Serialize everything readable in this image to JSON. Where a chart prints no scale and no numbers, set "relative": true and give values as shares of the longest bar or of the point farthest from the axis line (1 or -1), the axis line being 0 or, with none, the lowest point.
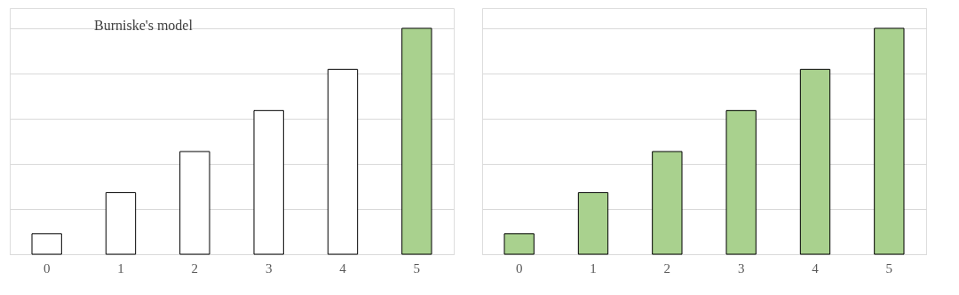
{
  "chart_data": [
    {
      "type": "bar",
      "title": "Burniske's model",
      "categories": [
        "0",
        "1",
        "2",
        "3",
        "4",
        "5"
      ],
      "relative": true,
      "grid": "y",
      "values": [
        0.0909,
        0.2727,
        0.4545,
        0.6364,
        0.8182,
        1
      ],
      "colors": [
        "#ffffff",
        "#ffffff",
        "#ffffff",
        "#ffffff",
        "#ffffff",
        "#a9d18e"
      ]
    },
    {
      "type": "bar",
      "categories": [
        "0",
        "1",
        "2",
        "3",
        "4",
        "5"
      ],
      "relative": true,
      "grid": "y",
      "values": [
        0.0909,
        0.2727,
        0.4545,
        0.6364,
        0.8182,
        1
      ],
      "colors": [
        "#a9d18e",
        "#a9d18e",
        "#a9d18e",
        "#a9d18e",
        "#a9d18e",
        "#a9d18e"
      ]
    }
  ]
}
